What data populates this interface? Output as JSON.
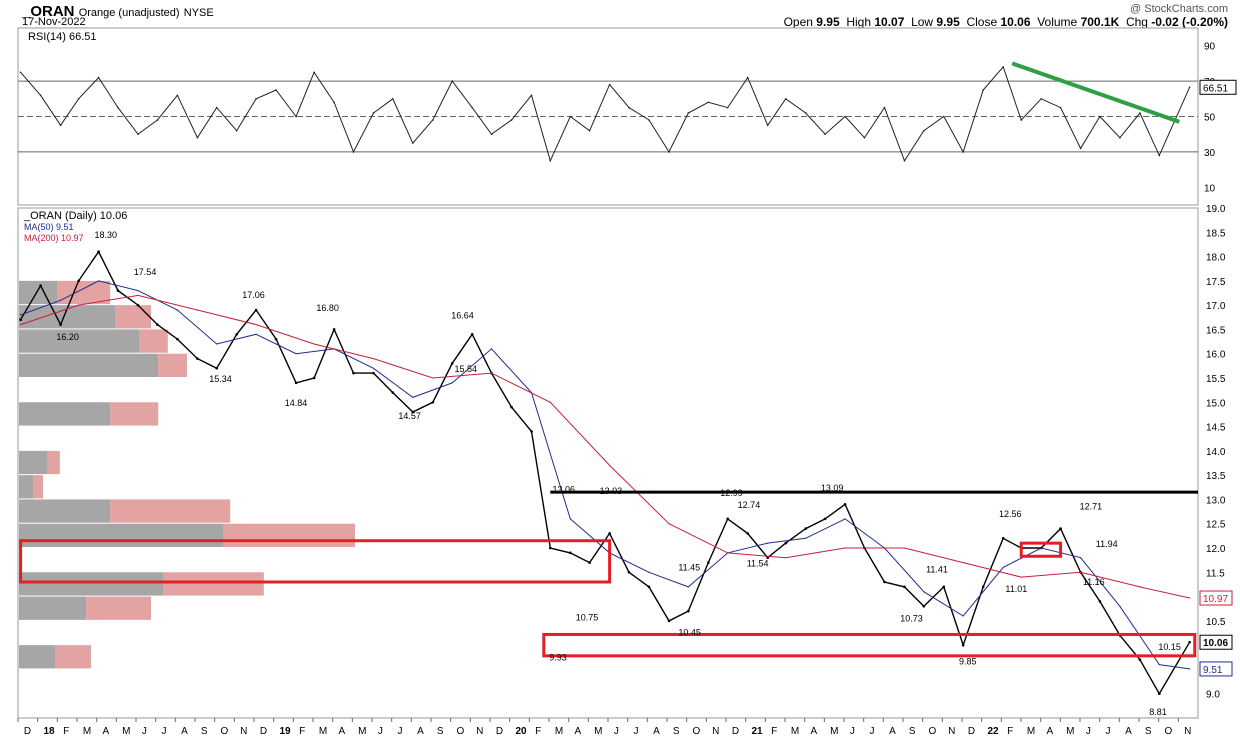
{
  "header": {
    "symbol": "_ORAN",
    "name": "Orange (unadjusted)",
    "exchange": "NYSE",
    "date": "17-Nov-2022",
    "watermark": "@ StockCharts.com",
    "quote": {
      "open_label": "Open",
      "open": "9.95",
      "high_label": "High",
      "high": "10.07",
      "low_label": "Low",
      "low": "9.95",
      "close_label": "Close",
      "close": "10.06",
      "volume_label": "Volume",
      "volume": "700.1K",
      "chg_label": "Chg",
      "chg": "-0.02 (-0.20%)"
    }
  },
  "chart_data": [
    {
      "type": "line",
      "title": "RSI(14) 66.51",
      "ylim": [
        0,
        100
      ],
      "y_ticks": [
        10,
        30,
        50,
        70,
        90
      ],
      "reference_lines": [
        30,
        50,
        70
      ],
      "last_value": "66.51",
      "series": [
        {
          "name": "RSI(14)",
          "x": [
            "2017-12-01",
            "2018-01-01",
            "2018-02-01",
            "2018-03-01",
            "2018-04-01",
            "2018-05-01",
            "2018-06-01",
            "2018-07-01",
            "2018-08-01",
            "2018-09-01",
            "2018-10-01",
            "2018-11-01",
            "2018-12-01",
            "2019-01-01",
            "2019-02-01",
            "2019-03-01",
            "2019-04-01",
            "2019-05-01",
            "2019-06-01",
            "2019-07-01",
            "2019-08-01",
            "2019-09-01",
            "2019-10-01",
            "2019-11-01",
            "2019-12-01",
            "2020-01-01",
            "2020-02-01",
            "2020-03-01",
            "2020-04-01",
            "2020-05-01",
            "2020-06-01",
            "2020-07-01",
            "2020-08-01",
            "2020-09-01",
            "2020-10-01",
            "2020-11-01",
            "2020-12-01",
            "2021-01-01",
            "2021-02-01",
            "2021-03-01",
            "2021-04-01",
            "2021-05-01",
            "2021-06-01",
            "2021-07-01",
            "2021-08-01",
            "2021-09-01",
            "2021-10-01",
            "2021-11-01",
            "2021-12-01",
            "2022-01-01",
            "2022-02-01",
            "2022-03-01",
            "2022-04-01",
            "2022-05-01",
            "2022-06-01",
            "2022-07-01",
            "2022-08-01",
            "2022-09-01",
            "2022-10-01",
            "2022-11-17"
          ],
          "values": [
            75,
            62,
            45,
            60,
            72,
            55,
            40,
            48,
            62,
            38,
            55,
            42,
            60,
            65,
            50,
            75,
            58,
            30,
            52,
            60,
            35,
            48,
            70,
            55,
            40,
            48,
            62,
            25,
            50,
            42,
            68,
            55,
            48,
            30,
            52,
            58,
            55,
            72,
            45,
            60,
            52,
            40,
            50,
            38,
            55,
            25,
            42,
            50,
            30,
            65,
            78,
            48,
            60,
            55,
            32,
            50,
            38,
            52,
            28,
            66.51
          ]
        }
      ],
      "annotations": [
        {
          "type": "trendline",
          "color": "#2ea043",
          "from": [
            "2022-02-15",
            80
          ],
          "to": [
            "2022-11-01",
            47
          ]
        }
      ]
    },
    {
      "type": "line",
      "title": "_ORAN (Daily) 10.06",
      "ylim": [
        8.5,
        19.0
      ],
      "y_ticks": [
        9.0,
        9.5,
        10.0,
        10.5,
        11.0,
        11.5,
        12.0,
        12.5,
        13.0,
        13.5,
        14.0,
        14.5,
        15.0,
        15.5,
        16.0,
        16.5,
        17.0,
        17.5,
        18.0,
        18.5,
        19.0
      ],
      "x_tick_labels": [
        "D",
        "18",
        "F",
        "M",
        "A",
        "M",
        "J",
        "J",
        "A",
        "S",
        "O",
        "N",
        "D",
        "19",
        "F",
        "M",
        "A",
        "M",
        "J",
        "J",
        "A",
        "S",
        "O",
        "N",
        "D",
        "20",
        "F",
        "M",
        "A",
        "M",
        "J",
        "J",
        "A",
        "S",
        "O",
        "N",
        "D",
        "21",
        "F",
        "M",
        "A",
        "M",
        "J",
        "J",
        "A",
        "S",
        "O",
        "N",
        "D",
        "22",
        "F",
        "M",
        "A",
        "M",
        "J",
        "J",
        "A",
        "S",
        "O",
        "N"
      ],
      "series": [
        {
          "name": "_ORAN (Daily)",
          "color": "#000000",
          "x": [
            "2017-12-01",
            "2018-01-01",
            "2018-02-01",
            "2018-03-01",
            "2018-04-01",
            "2018-05-01",
            "2018-06-01",
            "2018-07-01",
            "2018-08-01",
            "2018-09-01",
            "2018-10-01",
            "2018-11-01",
            "2018-12-01",
            "2019-01-01",
            "2019-02-01",
            "2019-03-01",
            "2019-04-01",
            "2019-05-01",
            "2019-06-01",
            "2019-07-01",
            "2019-08-01",
            "2019-09-01",
            "2019-10-01",
            "2019-11-01",
            "2019-12-01",
            "2020-01-01",
            "2020-02-01",
            "2020-03-01",
            "2020-04-01",
            "2020-05-01",
            "2020-06-01",
            "2020-07-01",
            "2020-08-01",
            "2020-09-01",
            "2020-10-01",
            "2020-11-01",
            "2020-12-01",
            "2021-01-01",
            "2021-02-01",
            "2021-03-01",
            "2021-04-01",
            "2021-05-01",
            "2021-06-01",
            "2021-07-01",
            "2021-08-01",
            "2021-09-01",
            "2021-10-01",
            "2021-11-01",
            "2021-12-01",
            "2022-01-01",
            "2022-02-01",
            "2022-03-01",
            "2022-04-01",
            "2022-05-01",
            "2022-06-01",
            "2022-07-01",
            "2022-08-01",
            "2022-09-01",
            "2022-10-01",
            "2022-11-17"
          ],
          "values": [
            16.7,
            17.4,
            16.6,
            17.5,
            18.1,
            17.3,
            17.0,
            16.6,
            16.3,
            15.9,
            15.7,
            16.4,
            16.9,
            16.3,
            15.4,
            15.5,
            16.5,
            15.6,
            15.6,
            15.2,
            14.8,
            15.0,
            15.8,
            16.4,
            15.6,
            14.9,
            14.4,
            12.0,
            11.9,
            11.7,
            12.3,
            11.5,
            11.2,
            10.5,
            10.7,
            11.7,
            12.6,
            12.3,
            11.8,
            12.1,
            12.4,
            12.6,
            12.9,
            12.0,
            11.3,
            11.2,
            10.8,
            11.2,
            10.0,
            11.2,
            12.2,
            12.0,
            12.0,
            12.4,
            11.5,
            10.9,
            10.2,
            9.7,
            9.0,
            10.06
          ]
        },
        {
          "name": "MA(50)",
          "color": "#1f2d8a",
          "x": [
            "2017-12-01",
            "2018-02-01",
            "2018-04-01",
            "2018-06-01",
            "2018-08-01",
            "2018-10-01",
            "2018-12-01",
            "2019-02-01",
            "2019-04-01",
            "2019-06-01",
            "2019-08-01",
            "2019-10-01",
            "2019-12-01",
            "2020-02-01",
            "2020-04-01",
            "2020-06-01",
            "2020-08-01",
            "2020-10-01",
            "2020-12-01",
            "2021-02-01",
            "2021-04-01",
            "2021-06-01",
            "2021-08-01",
            "2021-10-01",
            "2021-12-01",
            "2022-02-01",
            "2022-04-01",
            "2022-06-01",
            "2022-08-01",
            "2022-10-01",
            "2022-11-17"
          ],
          "values": [
            16.8,
            17.1,
            17.5,
            17.3,
            16.9,
            16.2,
            16.4,
            16.0,
            16.1,
            15.7,
            15.1,
            15.4,
            16.1,
            15.2,
            12.6,
            11.9,
            11.5,
            11.2,
            11.9,
            12.1,
            12.2,
            12.6,
            12.0,
            11.1,
            10.6,
            11.6,
            12.0,
            11.8,
            10.8,
            9.6,
            9.51
          ]
        },
        {
          "name": "MA(200)",
          "color": "#c81e3c",
          "x": [
            "2017-12-01",
            "2018-03-01",
            "2018-06-01",
            "2018-09-01",
            "2018-12-01",
            "2019-03-01",
            "2019-06-01",
            "2019-09-01",
            "2019-12-01",
            "2020-03-01",
            "2020-06-01",
            "2020-09-01",
            "2020-12-01",
            "2021-03-01",
            "2021-06-01",
            "2021-09-01",
            "2021-12-01",
            "2022-03-01",
            "2022-06-01",
            "2022-09-01",
            "2022-11-17"
          ],
          "values": [
            16.6,
            17.0,
            17.2,
            16.9,
            16.6,
            16.2,
            15.9,
            15.5,
            15.6,
            15.0,
            13.7,
            12.5,
            11.9,
            11.8,
            12.0,
            12.0,
            11.7,
            11.4,
            11.5,
            11.2,
            10.97
          ]
        }
      ],
      "price_labels": [
        {
          "x": "2018-04-10",
          "value": 18.3,
          "text": "18.30"
        },
        {
          "x": "2018-06-10",
          "value": 17.54,
          "text": "17.54"
        },
        {
          "x": "2018-02-10",
          "value": 16.2,
          "text": "16.20"
        },
        {
          "x": "2018-11-25",
          "value": 17.06,
          "text": "17.06"
        },
        {
          "x": "2018-10-05",
          "value": 15.34,
          "text": "15.34"
        },
        {
          "x": "2019-03-20",
          "value": 16.8,
          "text": "16.80"
        },
        {
          "x": "2019-01-30",
          "value": 14.84,
          "text": "14.84"
        },
        {
          "x": "2019-07-25",
          "value": 14.57,
          "text": "14.57"
        },
        {
          "x": "2019-10-15",
          "value": 16.64,
          "text": "16.64"
        },
        {
          "x": "2019-10-20",
          "value": 15.54,
          "text": "15.54"
        },
        {
          "x": "2020-03-15",
          "value": 9.93,
          "text": "9.93"
        },
        {
          "x": "2020-03-20",
          "value": 13.06,
          "text": "13.06"
        },
        {
          "x": "2020-06-01",
          "value": 13.03,
          "text": "13.03"
        },
        {
          "x": "2020-04-25",
          "value": 10.75,
          "text": "10.75"
        },
        {
          "x": "2020-10-01",
          "value": 11.45,
          "text": "11.45"
        },
        {
          "x": "2020-10-01",
          "value": 10.45,
          "text": "10.45"
        },
        {
          "x": "2020-12-05",
          "value": 12.99,
          "text": "12.99"
        },
        {
          "x": "2021-01-01",
          "value": 12.74,
          "text": "12.74"
        },
        {
          "x": "2021-01-15",
          "value": 11.54,
          "text": "11.54"
        },
        {
          "x": "2021-05-10",
          "value": 13.09,
          "text": "13.09"
        },
        {
          "x": "2021-09-10",
          "value": 10.73,
          "text": "10.73"
        },
        {
          "x": "2021-10-20",
          "value": 11.41,
          "text": "11.41"
        },
        {
          "x": "2021-12-10",
          "value": 9.85,
          "text": "9.85"
        },
        {
          "x": "2022-02-10",
          "value": 12.56,
          "text": "12.56"
        },
        {
          "x": "2022-02-20",
          "value": 11.01,
          "text": "11.01"
        },
        {
          "x": "2022-06-15",
          "value": 12.71,
          "text": "12.71"
        },
        {
          "x": "2022-07-10",
          "value": 11.94,
          "text": "11.94"
        },
        {
          "x": "2022-06-20",
          "value": 11.16,
          "text": "11.16"
        },
        {
          "x": "2022-10-15",
          "value": 10.15,
          "text": "10.15"
        },
        {
          "x": "2022-10-01",
          "value": 8.81,
          "text": "8.81"
        }
      ],
      "volume_by_price": [
        {
          "low": 17.0,
          "high": 17.5,
          "total": 0.38,
          "down": 0.16
        },
        {
          "low": 16.5,
          "high": 17.0,
          "total": 0.55,
          "down": 0.4
        },
        {
          "low": 16.0,
          "high": 16.5,
          "total": 0.62,
          "down": 0.5
        },
        {
          "low": 15.5,
          "high": 16.0,
          "total": 0.7,
          "down": 0.58
        },
        {
          "low": 14.5,
          "high": 15.0,
          "total": 0.58,
          "down": 0.38
        },
        {
          "low": 13.5,
          "high": 14.0,
          "total": 0.17,
          "down": 0.12
        },
        {
          "low": 13.0,
          "high": 13.5,
          "total": 0.1,
          "down": 0.06
        },
        {
          "low": 12.5,
          "high": 13.0,
          "total": 0.88,
          "down": 0.38
        },
        {
          "low": 12.0,
          "high": 12.5,
          "total": 1.4,
          "down": 0.85
        },
        {
          "low": 11.0,
          "high": 11.5,
          "total": 1.02,
          "down": 0.6
        },
        {
          "low": 10.5,
          "high": 11.0,
          "total": 0.55,
          "down": 0.28
        },
        {
          "low": 9.5,
          "high": 10.0,
          "total": 0.3,
          "down": 0.15
        }
      ],
      "annotations": [
        {
          "type": "hline",
          "color": "#000000",
          "value": 13.15,
          "from": "2020-03-01",
          "to": "2022-11-30"
        },
        {
          "type": "box",
          "color": "#e31e24",
          "y_low": 11.3,
          "y_high": 12.15,
          "from": "2017-12-01",
          "to": "2020-06-01"
        },
        {
          "type": "box",
          "color": "#e31e24",
          "y_low": 9.78,
          "y_high": 10.22,
          "from": "2020-02-20",
          "to": "2022-11-25"
        },
        {
          "type": "box",
          "color": "#e31e24",
          "y_low": 11.83,
          "y_high": 12.1,
          "from": "2022-03-01",
          "to": "2022-05-01"
        }
      ],
      "right_axis_badges": [
        {
          "value": 10.06,
          "text": "10.06",
          "color": "#000000"
        },
        {
          "value": 10.97,
          "text": "10.97",
          "color": "#c81e3c"
        },
        {
          "value": 9.51,
          "text": "9.51",
          "color": "#1f2d8a"
        }
      ]
    }
  ]
}
